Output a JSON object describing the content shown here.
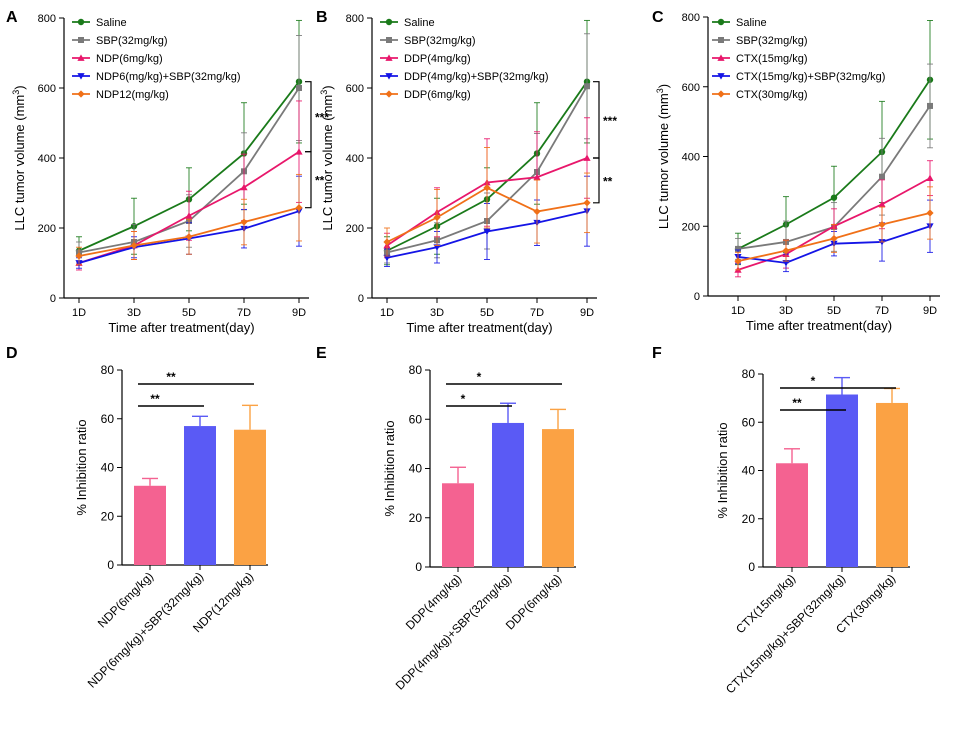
{
  "colors": {
    "Saline": "#1a7a1a",
    "SBP": "#7a7a7a",
    "agentA": "#e8176b",
    "agentB": "#1414e6",
    "agentC": "#f07018",
    "barPink": "#f46291",
    "barBlue": "#5a5af5",
    "barOrange": "#fba244"
  },
  "chart_data": [
    {
      "panel": "A",
      "type": "line",
      "ylabel": "LLC tumor volume (mm³)",
      "xlabel": "Time after treatment(day)",
      "categories": [
        "1D",
        "3D",
        "5D",
        "7D",
        "9D"
      ],
      "ylim": [
        0,
        800
      ],
      "yticks": [
        "0",
        "200",
        "400",
        "600",
        "800"
      ],
      "series": [
        {
          "name": "Saline",
          "color_key": "Saline",
          "marker": "circle",
          "values": [
            135,
            205,
            282,
            413,
            618
          ],
          "err": [
            40,
            80,
            90,
            145,
            175
          ]
        },
        {
          "name": "SBP(32mg/kg)",
          "color_key": "SBP",
          "marker": "square",
          "values": [
            130,
            160,
            220,
            362,
            600
          ],
          "err": [
            30,
            50,
            75,
            110,
            150
          ]
        },
        {
          "name": "NDP(6mg/kg)",
          "color_key": "agentA",
          "marker": "triangle",
          "values": [
            100,
            150,
            235,
            316,
            418
          ],
          "err": [
            20,
            40,
            70,
            95,
            145
          ]
        },
        {
          "name": "NDP6(mg/kg)+SBP(32mg/kg)",
          "color_key": "agentB",
          "marker": "triangle-down",
          "values": [
            100,
            145,
            170,
            198,
            248
          ],
          "err": [
            15,
            30,
            45,
            55,
            100
          ]
        },
        {
          "name": "NDP12(mg/kg)",
          "color_key": "agentC",
          "marker": "diamond",
          "values": [
            120,
            150,
            175,
            217,
            258
          ],
          "err": [
            25,
            40,
            50,
            65,
            95
          ]
        }
      ],
      "significance": [
        {
          "label": "***",
          "from_series": 0,
          "to_series": 2
        },
        {
          "label": "**",
          "from_series": 2,
          "to_series": 4
        }
      ]
    },
    {
      "panel": "B",
      "type": "line",
      "ylabel": "LLC tumor volume (mm³)",
      "xlabel": "Time after treatment(day)",
      "categories": [
        "1D",
        "3D",
        "5D",
        "7D",
        "9D"
      ],
      "ylim": [
        0,
        800
      ],
      "yticks": [
        "0",
        "200",
        "400",
        "600",
        "800"
      ],
      "series": [
        {
          "name": "Saline",
          "color_key": "Saline",
          "marker": "circle",
          "values": [
            135,
            205,
            282,
            413,
            618
          ],
          "err": [
            40,
            80,
            90,
            145,
            175
          ]
        },
        {
          "name": "SBP(32mg/kg)",
          "color_key": "SBP",
          "marker": "square",
          "values": [
            130,
            165,
            220,
            360,
            605
          ],
          "err": [
            30,
            50,
            80,
            110,
            150
          ]
        },
        {
          "name": "DDP(4mg/kg)",
          "color_key": "agentA",
          "marker": "triangle",
          "values": [
            150,
            245,
            330,
            345,
            400
          ],
          "err": [
            35,
            70,
            125,
            130,
            115
          ]
        },
        {
          "name": "DDP(4mg/kg)+SBP(32mg/kg)",
          "color_key": "agentB",
          "marker": "triangle-down",
          "values": [
            115,
            145,
            190,
            215,
            248
          ],
          "err": [
            25,
            45,
            80,
            65,
            100
          ]
        },
        {
          "name": "DDP(6mg/kg)",
          "color_key": "agentC",
          "marker": "diamond",
          "values": [
            160,
            230,
            315,
            247,
            272
          ],
          "err": [
            40,
            80,
            115,
            90,
            85
          ]
        }
      ],
      "significance": [
        {
          "label": "***",
          "from_series": 0,
          "to_series": 2
        },
        {
          "label": "**",
          "from_series": 2,
          "to_series": 4
        }
      ]
    },
    {
      "panel": "C",
      "type": "line",
      "ylabel": "LLC tumor volume (mm³)",
      "xlabel": "Time after treatment(day)",
      "categories": [
        "1D",
        "3D",
        "5D",
        "7D",
        "9D"
      ],
      "ylim": [
        0,
        800
      ],
      "yticks": [
        "0",
        "200",
        "400",
        "600",
        "800"
      ],
      "series": [
        {
          "name": "Saline",
          "color_key": "Saline",
          "marker": "circle",
          "values": [
            135,
            205,
            282,
            413,
            620
          ],
          "err": [
            45,
            80,
            90,
            145,
            170
          ]
        },
        {
          "name": "SBP(32mg/kg)",
          "color_key": "SBP",
          "marker": "square",
          "values": [
            135,
            155,
            198,
            342,
            545
          ],
          "err": [
            30,
            60,
            70,
            110,
            120
          ]
        },
        {
          "name": "CTX(15mg/kg)",
          "color_key": "agentA",
          "marker": "triangle",
          "values": [
            75,
            120,
            200,
            263,
            338
          ],
          "err": [
            20,
            40,
            50,
            70,
            50
          ]
        },
        {
          "name": "CTX(15mg/kg)+SBP(32mg/kg)",
          "color_key": "agentB",
          "marker": "triangle-down",
          "values": [
            112,
            95,
            150,
            155,
            200
          ],
          "err": [
            20,
            25,
            35,
            55,
            75
          ]
        },
        {
          "name": "CTX(30mg/kg)",
          "color_key": "agentC",
          "marker": "diamond",
          "values": [
            100,
            130,
            165,
            205,
            238
          ],
          "err": [
            25,
            30,
            40,
            50,
            75
          ]
        }
      ],
      "significance": []
    },
    {
      "panel": "D",
      "type": "bar",
      "ylabel": "% Inhibition ratio",
      "ylim": [
        0,
        80
      ],
      "yticks": [
        "0",
        "20",
        "40",
        "60",
        "80"
      ],
      "categories": [
        "NDP(6mg/kg)",
        "NDP(6mg/kg)+SBP(32mg/kg)",
        "NDP(12mg/kg)"
      ],
      "values": [
        32.5,
        57,
        55.5
      ],
      "err": [
        3,
        4,
        10
      ],
      "significance": [
        {
          "label": "**",
          "from": 0,
          "to": 1
        },
        {
          "label": "**",
          "from": 0,
          "to": 2
        }
      ]
    },
    {
      "panel": "E",
      "type": "bar",
      "ylabel": "% Inhibition ratio",
      "ylim": [
        0,
        80
      ],
      "yticks": [
        "0",
        "20",
        "40",
        "60",
        "80"
      ],
      "categories": [
        "DDP(4mg/kg)",
        "DDP(4mg/kg)+SBP(32mg/kg)",
        "DDP(6mg/kg)"
      ],
      "values": [
        34,
        58.5,
        56
      ],
      "err": [
        6.5,
        8,
        8
      ],
      "significance": [
        {
          "label": "*",
          "from": 0,
          "to": 1
        },
        {
          "label": "*",
          "from": 0,
          "to": 2
        }
      ]
    },
    {
      "panel": "F",
      "type": "bar",
      "ylabel": "% Inhibition ratio",
      "ylim": [
        0,
        80
      ],
      "yticks": [
        "0",
        "20",
        "40",
        "60",
        "80"
      ],
      "categories": [
        "CTX(15mg/kg)",
        "CTX(15mg/kg)+SBP(32mg/kg)",
        "CTX(30mg/kg)"
      ],
      "values": [
        43,
        71.5,
        68
      ],
      "err": [
        6,
        7,
        6
      ],
      "significance": [
        {
          "label": "**",
          "from": 0,
          "to": 1
        },
        {
          "label": "*",
          "from": 0,
          "to": 2
        }
      ]
    }
  ]
}
